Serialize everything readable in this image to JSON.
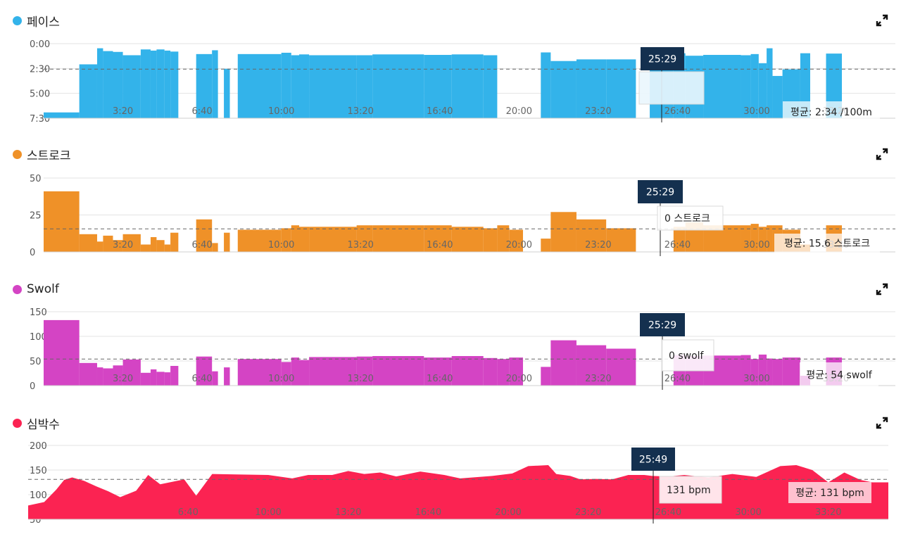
{
  "colors": {
    "pace": "#33b3ea",
    "stroke": "#ef9128",
    "swolf": "#d444c4",
    "hr": "#fb2352"
  },
  "icons": {
    "expand": "expand-icon"
  },
  "charts": [
    {
      "id": "pace",
      "title": "페이스",
      "color": "#33b3ea",
      "type": "bar",
      "y_ticks": [
        "0:00",
        "2:30",
        "5:00",
        "7:30"
      ],
      "x_ticks": [
        "3:20",
        "6:40",
        "10:00",
        "13:20",
        "16:40",
        "20:00",
        "23:20",
        "26:40",
        "30:00",
        "33:20"
      ],
      "cursor_label": "25:29",
      "avg_label": "평균: 2:34 /100m",
      "tooltip": ""
    },
    {
      "id": "stroke",
      "title": "스트로크",
      "color": "#ef9128",
      "type": "bar",
      "y_ticks": [
        "50",
        "25",
        "0"
      ],
      "x_ticks": [
        "3:20",
        "6:40",
        "10:00",
        "13:20",
        "16:40",
        "20:00",
        "23:20",
        "26:40",
        "30:00",
        "33:20"
      ],
      "cursor_label": "25:29",
      "avg_label": "평균: 15.6 스트로크",
      "tooltip": "0 스트로크"
    },
    {
      "id": "swolf",
      "title": "Swolf",
      "color": "#d444c4",
      "type": "bar",
      "y_ticks": [
        "150",
        "100",
        "50",
        "0"
      ],
      "x_ticks": [
        "3:20",
        "6:40",
        "10:00",
        "13:20",
        "16:40",
        "20:00",
        "23:20",
        "26:40",
        "30:00",
        "33:20"
      ],
      "cursor_label": "25:29",
      "avg_label": "평균: 54 swolf",
      "tooltip": "0 swolf"
    },
    {
      "id": "hr",
      "title": "심박수",
      "color": "#fb2352",
      "type": "area",
      "y_ticks": [
        "200",
        "150",
        "100",
        "50"
      ],
      "x_ticks": [
        "6:40",
        "10:00",
        "13:20",
        "16:40",
        "20:00",
        "23:20",
        "26:40",
        "30:00",
        "33:20"
      ],
      "cursor_label": "25:49",
      "avg_label": "평균: 131 bpm",
      "tooltip": "131 bpm"
    }
  ],
  "chart_data": [
    {
      "type": "bar",
      "series_name": "페이스",
      "unit": "sec/100m",
      "y_reversed": true,
      "ylim": [
        0,
        450
      ],
      "x_unit": "seconds",
      "xlim": [
        0,
        2150
      ],
      "avg": 154,
      "bars": [
        [
          0,
          90,
          415
        ],
        [
          90,
          135,
          125
        ],
        [
          135,
          150,
          28
        ],
        [
          150,
          175,
          45
        ],
        [
          175,
          200,
          50
        ],
        [
          200,
          245,
          70
        ],
        [
          245,
          270,
          35
        ],
        [
          270,
          285,
          42
        ],
        [
          285,
          305,
          35
        ],
        [
          305,
          320,
          42
        ],
        [
          320,
          340,
          48
        ],
        [
          385,
          425,
          63
        ],
        [
          425,
          440,
          40
        ],
        [
          455,
          470,
          152
        ],
        [
          490,
          600,
          63
        ],
        [
          600,
          625,
          55
        ],
        [
          625,
          645,
          70
        ],
        [
          645,
          670,
          65
        ],
        [
          670,
          790,
          70
        ],
        [
          790,
          830,
          70
        ],
        [
          830,
          960,
          65
        ],
        [
          960,
          1030,
          68
        ],
        [
          1030,
          1110,
          65
        ],
        [
          1110,
          1145,
          70
        ],
        [
          1255,
          1280,
          53
        ],
        [
          1280,
          1345,
          105
        ],
        [
          1345,
          1420,
          95
        ],
        [
          1420,
          1495,
          95
        ],
        [
          1530,
          1590,
          160
        ],
        [
          1590,
          1620,
          58
        ],
        [
          1620,
          1665,
          73
        ],
        [
          1665,
          1760,
          68
        ],
        [
          1760,
          1785,
          70
        ],
        [
          1785,
          1805,
          63
        ],
        [
          1805,
          1825,
          118
        ],
        [
          1825,
          1840,
          28
        ],
        [
          1840,
          1865,
          195
        ],
        [
          1865,
          1910,
          155
        ],
        [
          1910,
          1935,
          58
        ],
        [
          1975,
          2015,
          60
        ]
      ]
    },
    {
      "type": "bar",
      "series_name": "스트로크",
      "unit": "strokes",
      "ylim": [
        0,
        50
      ],
      "x_unit": "seconds",
      "xlim": [
        0,
        2150
      ],
      "avg": 15.6,
      "bars": [
        [
          0,
          90,
          41
        ],
        [
          90,
          135,
          12
        ],
        [
          135,
          150,
          7
        ],
        [
          150,
          175,
          11
        ],
        [
          175,
          200,
          8
        ],
        [
          200,
          245,
          12
        ],
        [
          245,
          270,
          5
        ],
        [
          270,
          285,
          10
        ],
        [
          285,
          305,
          8
        ],
        [
          305,
          320,
          5
        ],
        [
          320,
          340,
          13
        ],
        [
          385,
          425,
          22
        ],
        [
          425,
          440,
          6
        ],
        [
          455,
          470,
          13
        ],
        [
          490,
          600,
          15
        ],
        [
          600,
          625,
          16
        ],
        [
          625,
          645,
          18
        ],
        [
          645,
          670,
          17
        ],
        [
          670,
          790,
          17
        ],
        [
          790,
          830,
          18
        ],
        [
          830,
          960,
          18
        ],
        [
          960,
          1030,
          18
        ],
        [
          1030,
          1110,
          17
        ],
        [
          1110,
          1145,
          16
        ],
        [
          1145,
          1175,
          18
        ],
        [
          1175,
          1210,
          15
        ],
        [
          1255,
          1280,
          9
        ],
        [
          1280,
          1345,
          27
        ],
        [
          1345,
          1420,
          22
        ],
        [
          1420,
          1495,
          16
        ],
        [
          1530,
          1590,
          0
        ],
        [
          1590,
          1620,
          17
        ],
        [
          1620,
          1665,
          20
        ],
        [
          1665,
          1760,
          18
        ],
        [
          1760,
          1785,
          18
        ],
        [
          1785,
          1805,
          19
        ],
        [
          1805,
          1825,
          17
        ],
        [
          1825,
          1840,
          18
        ],
        [
          1840,
          1865,
          18
        ],
        [
          1865,
          1910,
          15
        ],
        [
          1910,
          1935,
          5
        ],
        [
          1975,
          2015,
          18
        ]
      ]
    },
    {
      "type": "bar",
      "series_name": "Swolf",
      "unit": "swolf",
      "ylim": [
        0,
        150
      ],
      "x_unit": "seconds",
      "xlim": [
        0,
        2150
      ],
      "avg": 54,
      "bars": [
        [
          0,
          90,
          133
        ],
        [
          90,
          135,
          46
        ],
        [
          135,
          150,
          37
        ],
        [
          150,
          175,
          35
        ],
        [
          175,
          200,
          41
        ],
        [
          200,
          245,
          53
        ],
        [
          245,
          270,
          26
        ],
        [
          270,
          285,
          33
        ],
        [
          285,
          305,
          28
        ],
        [
          305,
          320,
          27
        ],
        [
          320,
          340,
          40
        ],
        [
          385,
          425,
          59
        ],
        [
          425,
          440,
          29
        ],
        [
          455,
          470,
          37
        ],
        [
          490,
          600,
          54
        ],
        [
          600,
          625,
          48
        ],
        [
          625,
          645,
          57
        ],
        [
          645,
          670,
          52
        ],
        [
          670,
          790,
          58
        ],
        [
          790,
          830,
          59
        ],
        [
          830,
          960,
          60
        ],
        [
          960,
          1030,
          57
        ],
        [
          1030,
          1110,
          60
        ],
        [
          1110,
          1145,
          56
        ],
        [
          1145,
          1175,
          54
        ],
        [
          1175,
          1210,
          57
        ],
        [
          1255,
          1280,
          38
        ],
        [
          1280,
          1345,
          92
        ],
        [
          1345,
          1420,
          82
        ],
        [
          1420,
          1495,
          75
        ],
        [
          1530,
          1590,
          0
        ],
        [
          1590,
          1620,
          62
        ],
        [
          1620,
          1665,
          60
        ],
        [
          1665,
          1760,
          61
        ],
        [
          1760,
          1785,
          62
        ],
        [
          1785,
          1805,
          54
        ],
        [
          1805,
          1825,
          63
        ],
        [
          1825,
          1840,
          55
        ],
        [
          1840,
          1865,
          54
        ],
        [
          1865,
          1910,
          57
        ],
        [
          1910,
          1935,
          20
        ],
        [
          1975,
          2015,
          57
        ]
      ]
    },
    {
      "type": "area",
      "series_name": "심박수",
      "unit": "bpm",
      "ylim": [
        50,
        200
      ],
      "x_unit": "seconds",
      "xlim": [
        0,
        2150
      ],
      "avg": 131,
      "x": [
        0,
        40,
        70,
        90,
        110,
        140,
        170,
        200,
        230,
        270,
        300,
        330,
        390,
        420,
        460,
        520,
        600,
        660,
        700,
        760,
        800,
        840,
        880,
        920,
        980,
        1040,
        1080,
        1160,
        1210,
        1250,
        1300,
        1320,
        1355,
        1380,
        1420,
        1460,
        1500,
        1540,
        1560,
        1600,
        1640,
        1700,
        1760,
        1820,
        1880,
        1920,
        1960,
        2000,
        2040,
        2080,
        2110,
        2150
      ],
      "values": [
        78,
        85,
        110,
        130,
        135,
        128,
        117,
        107,
        95,
        108,
        140,
        121,
        131,
        98,
        142,
        141,
        140,
        133,
        140,
        140,
        148,
        142,
        145,
        137,
        147,
        140,
        133,
        138,
        143,
        158,
        160,
        142,
        138,
        131,
        132,
        131,
        140,
        140,
        138,
        137,
        140,
        135,
        142,
        136,
        158,
        160,
        150,
        125,
        145,
        130,
        125,
        125
      ]
    }
  ]
}
